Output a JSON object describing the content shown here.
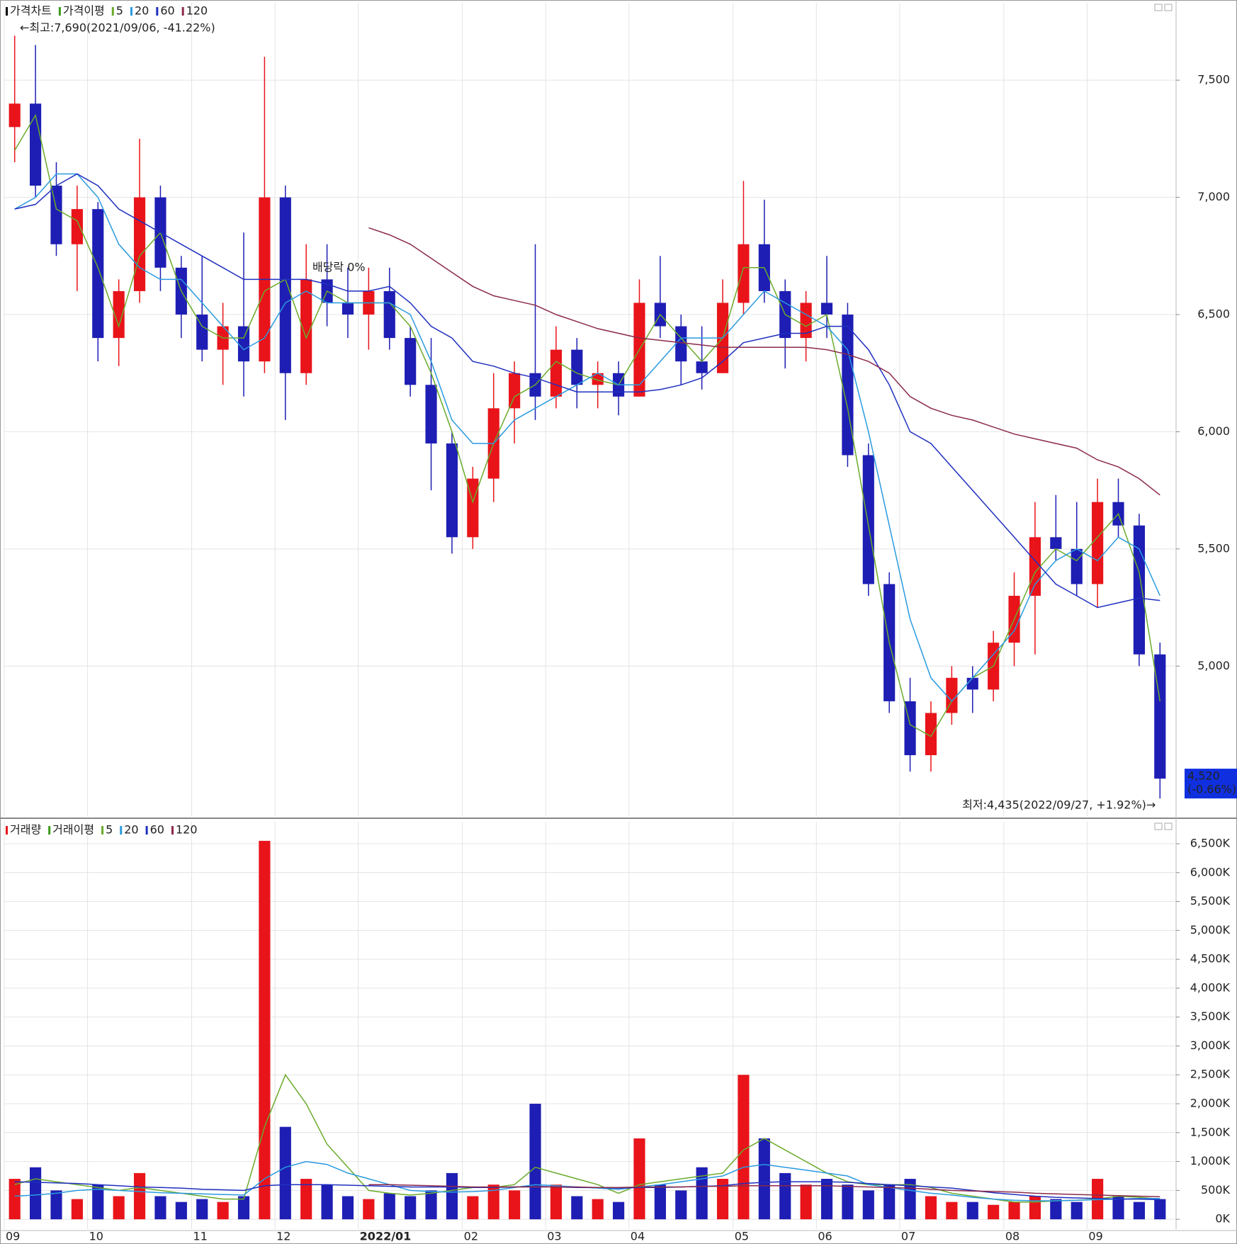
{
  "chart_data": [
    {
      "type": "candlestick",
      "legend": [
        {
          "name": "가격차트",
          "color": "#000000"
        },
        {
          "name": "가격이평",
          "color": "#3a9a1a"
        }
      ],
      "annotations": {
        "high": "←최고:7,690(2021/09/06, -41.22%)",
        "low": "최저:4,435(2022/09/27, +1.92%)→",
        "current": "4,520",
        "current_change": "(-0.66%)",
        "event": "배당락 0%"
      },
      "categories": [
        "09",
        null,
        null,
        null,
        "10",
        null,
        null,
        null,
        null,
        "11",
        null,
        null,
        null,
        "12",
        null,
        null,
        null,
        "2022/01",
        null,
        null,
        null,
        null,
        "02",
        null,
        null,
        null,
        "03",
        null,
        null,
        null,
        "04",
        null,
        null,
        null,
        null,
        "05",
        null,
        null,
        null,
        "06",
        null,
        null,
        null,
        "07",
        null,
        null,
        null,
        null,
        "08",
        null,
        null,
        null,
        "09",
        null,
        null,
        null
      ],
      "open": [
        7300,
        7400,
        7050,
        6800,
        6950,
        6400,
        6600,
        7000,
        6700,
        6500,
        6350,
        6450,
        6300,
        7000,
        6250,
        6650,
        6550,
        6500,
        6600,
        6400,
        6200,
        5950,
        5550,
        5800,
        6100,
        6250,
        6150,
        6350,
        6200,
        6250,
        6150,
        6550,
        6450,
        6300,
        6250,
        6550,
        6800,
        6600,
        6400,
        6550,
        6500,
        5900,
        5350,
        4850,
        4620,
        4800,
        4950,
        4900,
        5100,
        5300,
        5550,
        5500,
        5350,
        5700,
        5600,
        5050
      ],
      "high": [
        7690,
        7650,
        7150,
        7050,
        6980,
        6650,
        7250,
        7050,
        6750,
        6750,
        6550,
        6850,
        7600,
        7050,
        6800,
        6800,
        6700,
        6700,
        6700,
        6450,
        6400,
        6000,
        5850,
        6250,
        6300,
        6800,
        6450,
        6400,
        6300,
        6300,
        6650,
        6750,
        6500,
        6450,
        6650,
        7070,
        6990,
        6650,
        6600,
        6750,
        6550,
        5950,
        5400,
        4950,
        4850,
        5000,
        5000,
        5150,
        5400,
        5700,
        5730,
        5700,
        5800,
        5800,
        5650,
        5100
      ],
      "low": [
        7150,
        7000,
        6750,
        6600,
        6300,
        6280,
        6550,
        6600,
        6400,
        6300,
        6200,
        6150,
        6250,
        6050,
        6200,
        6450,
        6400,
        6350,
        6350,
        6150,
        5750,
        5480,
        5500,
        5700,
        5950,
        6050,
        6100,
        6100,
        6100,
        6070,
        6150,
        6400,
        6200,
        6180,
        6250,
        6500,
        6550,
        6270,
        6300,
        6400,
        5850,
        5300,
        4800,
        4550,
        4550,
        4750,
        4800,
        4850,
        5000,
        5050,
        5450,
        5300,
        5250,
        5550,
        5000,
        4435
      ],
      "close": [
        7400,
        7050,
        6800,
        6950,
        6400,
        6600,
        7000,
        6700,
        6500,
        6350,
        6450,
        6300,
        7000,
        6250,
        6650,
        6550,
        6500,
        6600,
        6400,
        6200,
        5950,
        5550,
        5800,
        6100,
        6250,
        6150,
        6350,
        6200,
        6250,
        6150,
        6550,
        6450,
        6300,
        6250,
        6550,
        6800,
        6600,
        6400,
        6550,
        6500,
        5900,
        5350,
        4850,
        4620,
        4800,
        4950,
        4900,
        5100,
        5300,
        5550,
        5500,
        5350,
        5700,
        5600,
        5050,
        4520
      ],
      "up_color": "#e8141a",
      "down_color": "#1e1eb4",
      "series": [
        {
          "name": "5",
          "color": "#6aab2b",
          "values": [
            7200,
            7350,
            6950,
            6900,
            6700,
            6450,
            6750,
            6850,
            6600,
            6450,
            6400,
            6400,
            6600,
            6650,
            6400,
            6600,
            6550,
            6550,
            6550,
            6450,
            6250,
            6000,
            5700,
            5950,
            6150,
            6200,
            6300,
            6250,
            6220,
            6200,
            6350,
            6500,
            6400,
            6300,
            6400,
            6700,
            6700,
            6500,
            6450,
            6500,
            6100,
            5600,
            5100,
            4750,
            4700,
            4850,
            4950,
            5000,
            5200,
            5400,
            5500,
            5450,
            5550,
            5650,
            5400,
            4850
          ]
        },
        {
          "name": "20",
          "color": "#2a9adf",
          "values": [
            6950,
            7000,
            7100,
            7100,
            7000,
            6800,
            6700,
            6650,
            6650,
            6550,
            6450,
            6350,
            6400,
            6550,
            6600,
            6550,
            6550,
            6550,
            6550,
            6500,
            6300,
            6050,
            5950,
            5950,
            6050,
            6100,
            6150,
            6200,
            6250,
            6200,
            6200,
            6300,
            6400,
            6400,
            6400,
            6500,
            6600,
            6550,
            6500,
            6450,
            6350,
            6000,
            5600,
            5200,
            4950,
            4850,
            4950,
            5050,
            5150,
            5350,
            5450,
            5500,
            5450,
            5550,
            5500,
            5300
          ]
        },
        {
          "name": "60",
          "color": "#1f2fbf",
          "values": [
            6950,
            6970,
            7050,
            7100,
            7050,
            6950,
            6900,
            6850,
            6800,
            6750,
            6700,
            6650,
            6650,
            6650,
            6650,
            6630,
            6600,
            6600,
            6620,
            6550,
            6450,
            6400,
            6300,
            6280,
            6250,
            6230,
            6200,
            6170,
            6170,
            6170,
            6170,
            6180,
            6200,
            6230,
            6300,
            6380,
            6400,
            6420,
            6420,
            6450,
            6450,
            6350,
            6200,
            6000,
            5950,
            5850,
            5750,
            5650,
            5550,
            5450,
            5350,
            5300,
            5250,
            5270,
            5290,
            5280
          ]
        },
        {
          "name": "120",
          "color": "#8b2a4a",
          "values": [
            null,
            null,
            null,
            null,
            null,
            null,
            null,
            null,
            null,
            null,
            null,
            null,
            null,
            null,
            null,
            null,
            null,
            6870,
            6840,
            6800,
            6740,
            6680,
            6620,
            6580,
            6560,
            6540,
            6500,
            6470,
            6440,
            6420,
            6400,
            6390,
            6380,
            6370,
            6360,
            6360,
            6360,
            6360,
            6360,
            6350,
            6330,
            6300,
            6250,
            6150,
            6100,
            6070,
            6050,
            6020,
            5990,
            5970,
            5950,
            5930,
            5880,
            5850,
            5800,
            5730
          ]
        }
      ],
      "ylim": [
        4360,
        7830
      ],
      "yticks": [
        {
          "value": 5000,
          "label": "5,000"
        },
        {
          "value": 5500,
          "label": "5,500"
        },
        {
          "value": 6000,
          "label": "6,000"
        },
        {
          "value": 6500,
          "label": "6,500"
        },
        {
          "value": 7000,
          "label": "7,000"
        },
        {
          "value": 7500,
          "label": "7,500"
        }
      ],
      "grid": true
    },
    {
      "type": "bar",
      "legend": [
        {
          "name": "거래량",
          "color": "#e8141a"
        },
        {
          "name": "거래이평",
          "color": "#3a9a1a"
        }
      ],
      "values": [
        700,
        900,
        500,
        350,
        600,
        400,
        800,
        400,
        300,
        350,
        300,
        400,
        6550,
        1600,
        700,
        600,
        400,
        350,
        450,
        400,
        500,
        800,
        400,
        600,
        500,
        2000,
        600,
        400,
        350,
        300,
        1400,
        600,
        500,
        900,
        700,
        2500,
        1400,
        800,
        600,
        700,
        600,
        500,
        600,
        700,
        400,
        300,
        300,
        250,
        300,
        400,
        350,
        300,
        700,
        400,
        300,
        350
      ],
      "series": [
        {
          "name": "5",
          "color": "#6aab2b",
          "values": [
            600,
            700,
            650,
            600,
            550,
            500,
            550,
            500,
            450,
            400,
            350,
            350,
            1600,
            2500,
            2000,
            1300,
            900,
            500,
            450,
            420,
            450,
            500,
            550,
            550,
            600,
            900,
            800,
            700,
            600,
            450,
            600,
            650,
            700,
            750,
            800,
            1200,
            1400,
            1200,
            1000,
            800,
            650,
            600,
            600,
            600,
            550,
            450,
            400,
            350,
            300,
            300,
            320,
            330,
            350,
            400,
            380,
            350
          ]
        },
        {
          "name": "20",
          "color": "#2a9adf",
          "values": [
            400,
            420,
            450,
            500,
            520,
            500,
            480,
            460,
            450,
            440,
            430,
            420,
            700,
            900,
            1000,
            950,
            800,
            700,
            600,
            500,
            480,
            470,
            480,
            500,
            550,
            600,
            580,
            560,
            540,
            520,
            560,
            600,
            650,
            700,
            750,
            900,
            950,
            900,
            850,
            800,
            750,
            600,
            550,
            500,
            450,
            420,
            380,
            350,
            330,
            320,
            320,
            330,
            340,
            350,
            360,
            360
          ]
        },
        {
          "name": "60",
          "color": "#1f2fbf",
          "values": [
            650,
            640,
            630,
            620,
            600,
            580,
            560,
            550,
            540,
            520,
            510,
            500,
            580,
            600,
            600,
            600,
            590,
            580,
            570,
            560,
            560,
            560,
            550,
            550,
            560,
            570,
            560,
            550,
            550,
            540,
            550,
            550,
            560,
            570,
            580,
            620,
            640,
            650,
            650,
            650,
            640,
            620,
            600,
            580,
            560,
            540,
            500,
            460,
            430,
            400,
            380,
            370,
            360,
            350,
            350,
            340
          ]
        },
        {
          "name": "120",
          "color": "#8b2a4a",
          "values": [
            null,
            null,
            null,
            null,
            null,
            null,
            null,
            null,
            null,
            null,
            null,
            null,
            null,
            null,
            null,
            null,
            null,
            600,
            600,
            590,
            580,
            570,
            560,
            560,
            560,
            560,
            560,
            560,
            550,
            550,
            560,
            560,
            560,
            570,
            570,
            580,
            580,
            580,
            580,
            580,
            570,
            560,
            550,
            540,
            520,
            500,
            490,
            480,
            470,
            450,
            440,
            430,
            420,
            410,
            400,
            390
          ]
        }
      ],
      "ylim": [
        -170,
        6880
      ],
      "yticks": [
        {
          "value": 0,
          "label": "0K"
        },
        {
          "value": 500,
          "label": "500K"
        },
        {
          "value": 1000,
          "label": "1,000K"
        },
        {
          "value": 1500,
          "label": "1,500K"
        },
        {
          "value": 2000,
          "label": "2,000K"
        },
        {
          "value": 2500,
          "label": "2,500K"
        },
        {
          "value": 3000,
          "label": "3,000K"
        },
        {
          "value": 3500,
          "label": "3,500K"
        },
        {
          "value": 4000,
          "label": "4,000K"
        },
        {
          "value": 4500,
          "label": "4,500K"
        },
        {
          "value": 5000,
          "label": "5,000K"
        },
        {
          "value": 5500,
          "label": "5,500K"
        },
        {
          "value": 6000,
          "label": "6,000K"
        },
        {
          "value": 6500,
          "label": "6,500K"
        }
      ],
      "grid": true
    }
  ]
}
